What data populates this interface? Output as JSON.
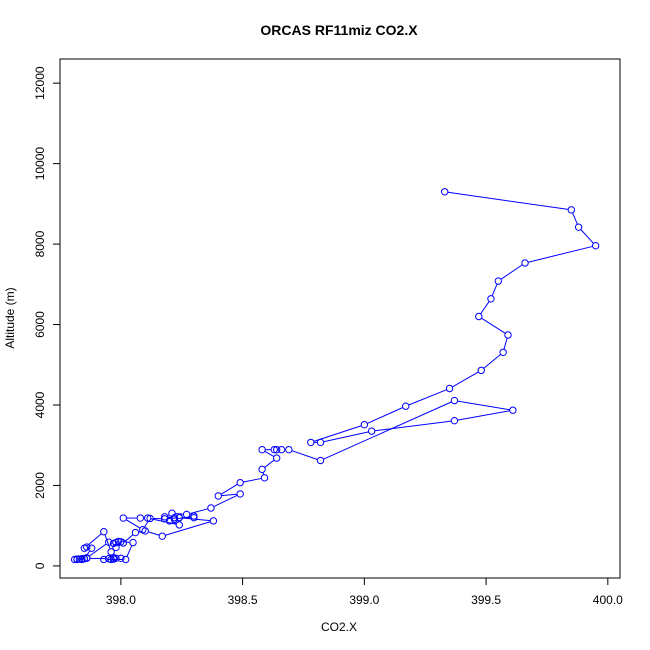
{
  "chart_data": {
    "type": "line",
    "title": "ORCAS RF11miz CO2.X",
    "xlabel": "CO2.X",
    "ylabel": "Altitude (m)",
    "xlim": [
      397.75,
      400.05
    ],
    "ylim": [
      -300,
      12600
    ],
    "x_ticks": [
      398.0,
      398.5,
      399.0,
      399.5,
      400.0
    ],
    "x_tick_labels": [
      "398.0",
      "398.5",
      "399.0",
      "399.5",
      "400.0"
    ],
    "y_ticks": [
      0,
      2000,
      4000,
      6000,
      8000,
      10000,
      12000
    ],
    "y_tick_labels": [
      "0",
      "2000",
      "4000",
      "6000",
      "8000",
      "10000",
      "12000"
    ],
    "grid": false,
    "marker": "open-circle",
    "colors": {
      "series": "#0000ff",
      "axis": "#000000"
    },
    "series": [
      {
        "x": [
          399.33,
          399.85,
          399.88,
          399.95,
          399.66,
          399.55,
          399.52,
          399.47,
          399.59,
          399.57,
          399.48,
          399.35,
          399.17,
          399.0,
          398.78,
          398.82,
          399.03,
          399.37,
          399.61,
          399.37,
          398.82,
          398.69,
          398.66,
          398.64,
          398.63,
          398.58,
          398.64,
          398.58,
          398.59,
          398.49,
          398.4,
          398.49,
          398.37,
          398.27,
          398.21,
          398.18,
          398.22,
          398.24,
          398.3,
          398.3,
          398.22,
          398.2,
          398.24,
          398.11,
          398.08,
          398.01,
          398.09,
          398.12,
          398.18,
          398.24,
          398.38,
          398.17,
          398.1,
          398.06,
          398.01,
          397.98,
          397.96,
          397.93,
          397.85,
          397.86,
          397.88,
          397.85,
          397.84,
          397.82,
          397.86,
          397.95,
          397.98,
          398.0,
          397.97,
          397.96,
          397.97,
          397.93,
          398.02,
          398.05,
          397.99,
          398.0,
          397.98,
          397.97,
          397.95,
          397.86,
          397.84,
          397.82,
          397.81,
          397.83,
          397.85
        ],
        "y": [
          9300,
          8850,
          8420,
          7960,
          7530,
          7080,
          6640,
          6200,
          5740,
          5310,
          4860,
          4410,
          3970,
          3510,
          3070,
          3070,
          3350,
          3610,
          3870,
          4110,
          2620,
          2890,
          2890,
          2890,
          2890,
          2890,
          2680,
          2400,
          2190,
          2070,
          1740,
          1790,
          1440,
          1280,
          1310,
          1220,
          1200,
          1200,
          1200,
          1240,
          1160,
          1120,
          1020,
          1190,
          1190,
          1190,
          900,
          1180,
          1170,
          1200,
          1120,
          740,
          870,
          830,
          570,
          460,
          350,
          850,
          440,
          470,
          440,
          180,
          160,
          160,
          190,
          180,
          190,
          190,
          200,
          160,
          170,
          160,
          160,
          580,
          610,
          600,
          580,
          560,
          590,
          200,
          180,
          170,
          160,
          170,
          180
        ]
      }
    ]
  }
}
